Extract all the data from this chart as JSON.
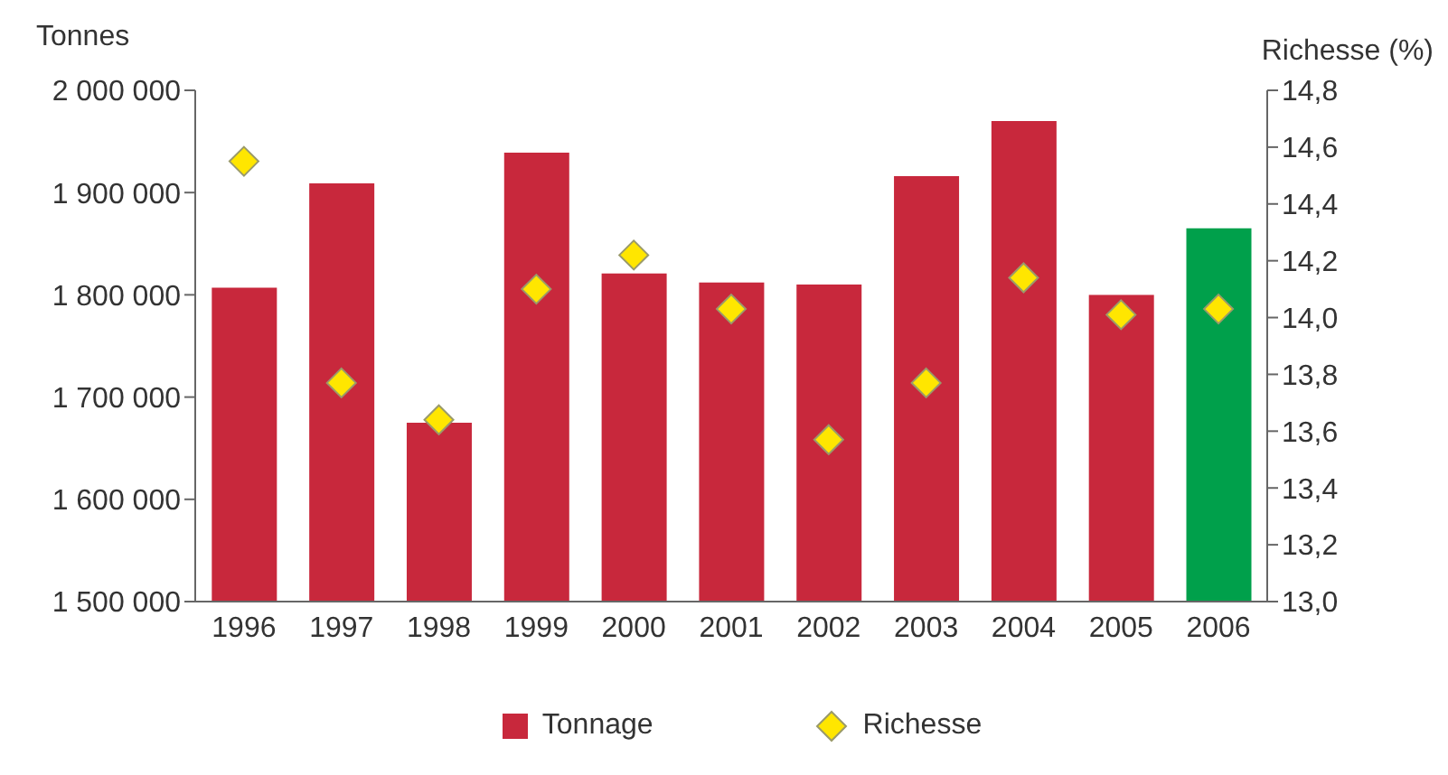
{
  "chart_data": {
    "type": "bar",
    "ylabel": "Tonnes",
    "y2label": "Richesse (%)",
    "categories": [
      "1996",
      "1997",
      "1998",
      "1999",
      "2000",
      "2001",
      "2002",
      "2003",
      "2004",
      "2005",
      "2006"
    ],
    "series": [
      {
        "name": "Tonnage",
        "colors": [
          "#c8283c",
          "#c8283c",
          "#c8283c",
          "#c8283c",
          "#c8283c",
          "#c8283c",
          "#c8283c",
          "#c8283c",
          "#c8283c",
          "#c8283c",
          "#00a04b"
        ],
        "values": [
          1807000,
          1909000,
          1675000,
          1939000,
          1821000,
          1812000,
          1810000,
          1916000,
          1970000,
          1800000,
          1865000
        ]
      },
      {
        "name": "Richesse",
        "type": "scatter",
        "axis": "y2",
        "marker": "diamond",
        "color": "#ffe600",
        "values": [
          14.55,
          13.77,
          13.64,
          14.1,
          14.22,
          14.03,
          13.57,
          13.77,
          14.14,
          14.01,
          14.03
        ]
      }
    ],
    "ylim": [
      1500000,
      2000000
    ],
    "yticks": [
      {
        "value": 1500000,
        "label": "1 500 000"
      },
      {
        "value": 1600000,
        "label": "1 600 000"
      },
      {
        "value": 1700000,
        "label": "1 700 000"
      },
      {
        "value": 1800000,
        "label": "1 800 000"
      },
      {
        "value": 1900000,
        "label": "1 900 000"
      },
      {
        "value": 2000000,
        "label": "2 000 000"
      }
    ],
    "y2lim": [
      13,
      14.8
    ],
    "y2ticks": [
      {
        "value": 13,
        "label": "13,0"
      },
      {
        "value": 13.2,
        "label": "13,2"
      },
      {
        "value": 13.4,
        "label": "13,4"
      },
      {
        "value": 13.6,
        "label": "13,6"
      },
      {
        "value": 13.8,
        "label": "13,8"
      },
      {
        "value": 14,
        "label": "14,0"
      },
      {
        "value": 14.2,
        "label": "14,2"
      },
      {
        "value": 14.4,
        "label": "14,4"
      },
      {
        "value": 14.6,
        "label": "14,6"
      },
      {
        "value": 14.8,
        "label": "14,8"
      }
    ],
    "grid": false,
    "legend": "bottom"
  }
}
